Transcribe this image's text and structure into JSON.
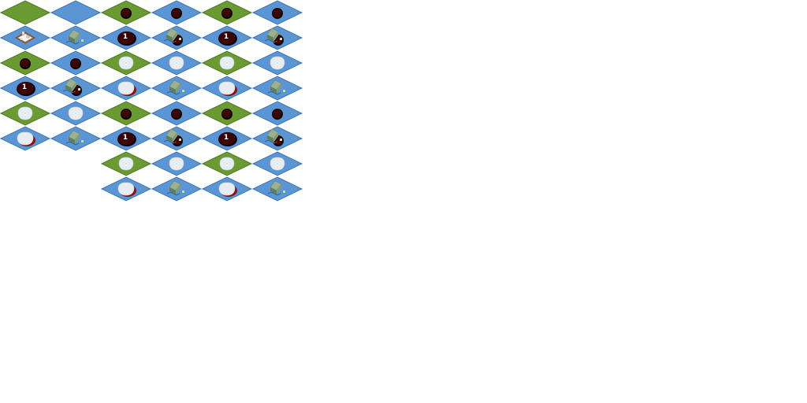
{
  "sheet": {
    "colors": {
      "grass": "#6a9a32",
      "grass_edge": "#4d7a22",
      "water": "#5b95d3",
      "water_edge": "#3f79b8",
      "crater": "#3a0505",
      "crater_rim": "#150000",
      "snow": "#e8edf2",
      "snow_shadow": "#8a1010",
      "hut_roof": "#9ab08f",
      "hut_wall": "#5f7f5f",
      "number_text": "#ffffff"
    },
    "rows": [
      {
        "tiles": [
          {
            "base": "grass",
            "overlay": "none"
          },
          {
            "base": "water",
            "overlay": "none"
          },
          {
            "base": "grass",
            "overlay": "crater-small"
          },
          {
            "base": "water",
            "overlay": "crater-small"
          },
          {
            "base": "grass",
            "overlay": "crater-small"
          },
          {
            "base": "water",
            "overlay": "crater-small"
          }
        ]
      },
      {
        "tiles": [
          {
            "base": "water",
            "overlay": "ruins"
          },
          {
            "base": "water",
            "overlay": "hut"
          },
          {
            "base": "water",
            "overlay": "crater-large",
            "label": "1"
          },
          {
            "base": "water",
            "overlay": "hut-crater"
          },
          {
            "base": "water",
            "overlay": "crater-large",
            "label": "1"
          },
          {
            "base": "water",
            "overlay": "hut-crater"
          }
        ]
      },
      {
        "tiles": [
          {
            "base": "grass",
            "overlay": "crater-small"
          },
          {
            "base": "water",
            "overlay": "crater-small"
          },
          {
            "base": "grass",
            "overlay": "snow"
          },
          {
            "base": "water",
            "overlay": "snow"
          },
          {
            "base": "grass",
            "overlay": "snow"
          },
          {
            "base": "water",
            "overlay": "snow"
          }
        ]
      },
      {
        "tiles": [
          {
            "base": "water",
            "overlay": "crater-large",
            "label": "1"
          },
          {
            "base": "water",
            "overlay": "hut-crater"
          },
          {
            "base": "water",
            "overlay": "snow-large"
          },
          {
            "base": "water",
            "overlay": "hut"
          },
          {
            "base": "water",
            "overlay": "snow-large"
          },
          {
            "base": "water",
            "overlay": "hut"
          }
        ]
      },
      {
        "tiles": [
          {
            "base": "grass",
            "overlay": "snow"
          },
          {
            "base": "water",
            "overlay": "snow"
          },
          {
            "base": "grass",
            "overlay": "crater-small"
          },
          {
            "base": "water",
            "overlay": "crater-small"
          },
          {
            "base": "grass",
            "overlay": "crater-small"
          },
          {
            "base": "water",
            "overlay": "crater-small"
          }
        ]
      },
      {
        "tiles": [
          {
            "base": "water",
            "overlay": "snow-large"
          },
          {
            "base": "water",
            "overlay": "hut"
          },
          {
            "base": "water",
            "overlay": "crater-large",
            "label": "1"
          },
          {
            "base": "water",
            "overlay": "hut-crater"
          },
          {
            "base": "water",
            "overlay": "crater-large",
            "label": "1"
          },
          {
            "base": "water",
            "overlay": "hut-crater"
          }
        ]
      },
      {
        "tiles": [
          null,
          null,
          {
            "base": "grass",
            "overlay": "snow"
          },
          {
            "base": "water",
            "overlay": "snow"
          },
          {
            "base": "grass",
            "overlay": "snow"
          },
          {
            "base": "water",
            "overlay": "snow"
          }
        ]
      },
      {
        "tiles": [
          null,
          null,
          {
            "base": "water",
            "overlay": "snow-large"
          },
          {
            "base": "water",
            "overlay": "hut"
          },
          {
            "base": "water",
            "overlay": "snow-large"
          },
          {
            "base": "water",
            "overlay": "hut"
          }
        ]
      }
    ]
  }
}
